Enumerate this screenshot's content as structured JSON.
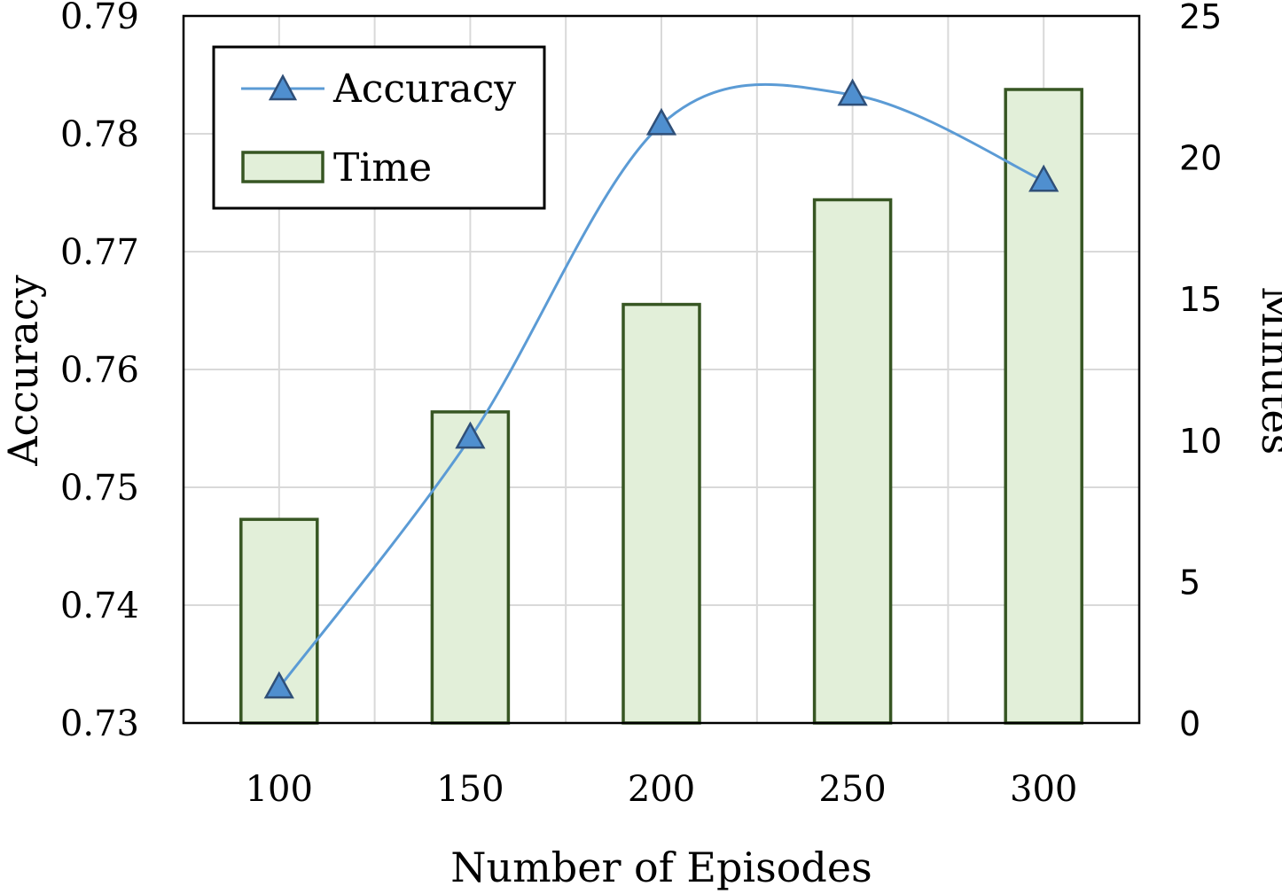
{
  "chart_data": {
    "type": "bar+line",
    "categories": [
      "100",
      "150",
      "200",
      "250",
      "300"
    ],
    "series": [
      {
        "name": "Time",
        "axis": "right",
        "kind": "bar",
        "values": [
          7.2,
          11.0,
          14.8,
          18.5,
          22.4
        ]
      },
      {
        "name": "Accuracy",
        "axis": "left",
        "kind": "line",
        "marker": "triangle",
        "smooth": true,
        "values": [
          0.733,
          0.7542,
          0.7808,
          0.7833,
          0.776
        ]
      }
    ],
    "xlabel": "Number of Episodes",
    "ylabel": "Accuracy",
    "ylabel_right": "Minutes",
    "ylim": [
      0.73,
      0.79
    ],
    "yticks": [
      "0.73",
      "0.74",
      "0.75",
      "0.76",
      "0.77",
      "0.78",
      "0.79"
    ],
    "ylim_right": [
      0,
      25
    ],
    "yticks_right": [
      "0",
      "5",
      "10",
      "15",
      "20",
      "25"
    ],
    "grid": true,
    "legend_position": "top-left",
    "legend": [
      {
        "label": "Accuracy",
        "symbol": "line-triangle"
      },
      {
        "label": "Time",
        "symbol": "bar"
      }
    ],
    "colors": {
      "bar_fill": "#e2efd9",
      "bar_stroke": "#375623",
      "line": "#5b9bd5",
      "marker_fill": "#4f8fcf",
      "marker_stroke": "#2f4f78",
      "grid": "#d9d9d9",
      "frame": "#000000"
    }
  }
}
